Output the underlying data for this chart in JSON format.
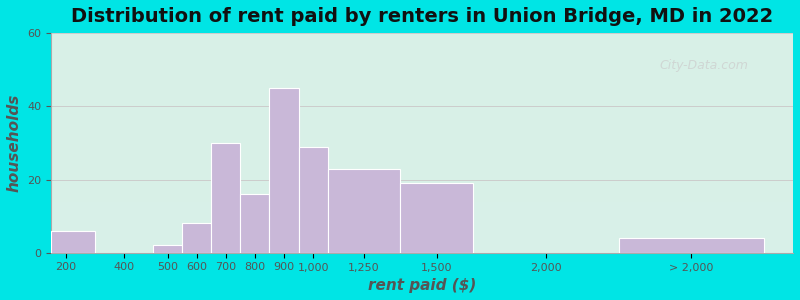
{
  "title": "Distribution of rent paid by renters in Union Bridge, MD in 2022",
  "xlabel": "rent paid ($)",
  "ylabel": "households",
  "bar_color": "#c9b8d8",
  "bar_edge_color": "#ffffff",
  "ylim": [
    0,
    60
  ],
  "yticks": [
    0,
    20,
    40,
    60
  ],
  "background_outer": "#00e5e5",
  "background_inner_top": "#e8f0e0",
  "background_inner_bottom": "#d8f0e8",
  "categories": [
    "200",
    "400",
    "500",
    "600",
    "700",
    "800",
    "900",
    "1,000",
    "1,250",
    "1,500",
    "2,000",
    "> 2,000"
  ],
  "values": [
    6,
    0,
    2,
    8,
    30,
    16,
    45,
    29,
    23,
    19,
    0,
    4
  ],
  "bar_widths": [
    1,
    1,
    1,
    1,
    1,
    1,
    1,
    1,
    1,
    1,
    1,
    1
  ],
  "watermark": "City-Data.com",
  "title_fontsize": 14,
  "axis_label_fontsize": 11
}
